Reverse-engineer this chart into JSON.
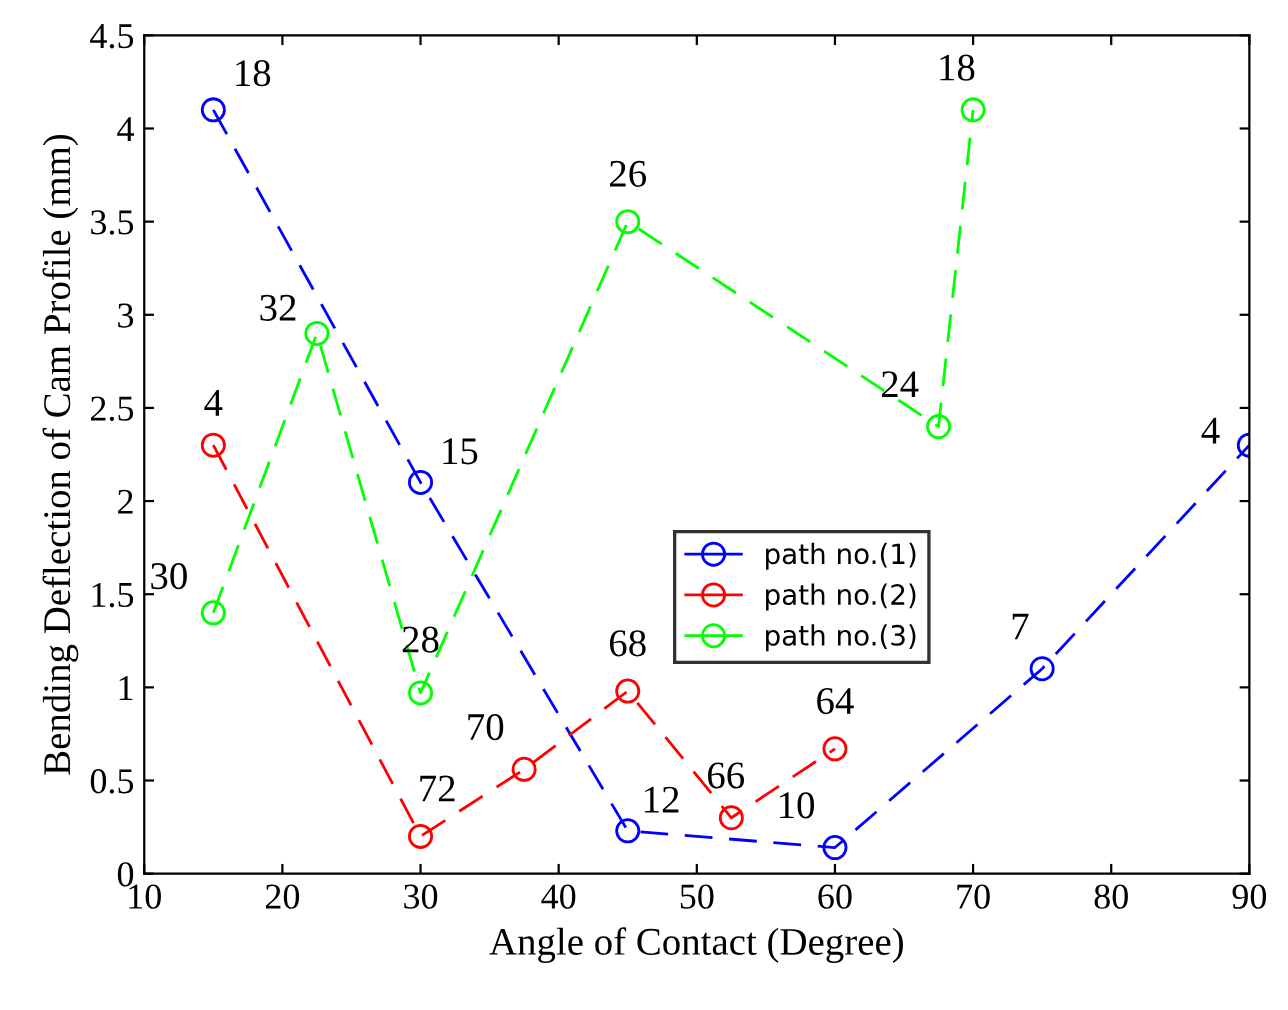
{
  "chart_data": {
    "type": "line",
    "xlabel": "Angle of Contact (Degree)",
    "ylabel": "Bending Deflection of Cam Profile (mm)",
    "xlim": [
      10,
      90
    ],
    "xticks": [
      10,
      20,
      30,
      40,
      50,
      60,
      70,
      80,
      90
    ],
    "ylim": [
      0,
      4.5
    ],
    "yticks": [
      0,
      0.5,
      1,
      1.5,
      2,
      2.5,
      3,
      3.5,
      4,
      4.5
    ],
    "grid": false,
    "legend": "center",
    "marker": "circle",
    "line_style": "dashed",
    "series": [
      {
        "name": "path no.(1)",
        "color": "#0000ff",
        "x": [
          15,
          30,
          45,
          60,
          75,
          90
        ],
        "values": [
          4.1,
          2.1,
          0.23,
          0.14,
          1.1,
          2.3
        ]
      },
      {
        "name": "path no.(2)",
        "color": "#ff0000",
        "x": [
          15,
          30,
          37.5,
          45,
          52.5,
          60
        ],
        "values": [
          2.3,
          0.2,
          0.56,
          0.98,
          0.3,
          0.67
        ]
      },
      {
        "name": "path no.(3)",
        "color": "#00ff00",
        "x": [
          15,
          22.5,
          30,
          45,
          67.5,
          70
        ],
        "values": [
          1.4,
          2.9,
          0.97,
          3.5,
          2.4,
          4.1
        ]
      }
    ],
    "annotations": [
      {
        "text": "18",
        "x": 15,
        "y": 4.1
      },
      {
        "text": "15",
        "x": 30,
        "y": 2.1
      },
      {
        "text": "12",
        "x": 45,
        "y": 0.23
      },
      {
        "text": "10",
        "x": 60,
        "y": 0.14
      },
      {
        "text": "7",
        "x": 75,
        "y": 1.1
      },
      {
        "text": "4",
        "x": 90,
        "y": 2.3
      },
      {
        "text": "4",
        "x": 15,
        "y": 2.3
      },
      {
        "text": "72",
        "x": 30,
        "y": 0.2
      },
      {
        "text": "70",
        "x": 37.5,
        "y": 0.56
      },
      {
        "text": "68",
        "x": 45,
        "y": 0.98
      },
      {
        "text": "66",
        "x": 52.5,
        "y": 0.3
      },
      {
        "text": "64",
        "x": 60,
        "y": 0.67
      },
      {
        "text": "30",
        "x": 15,
        "y": 1.4
      },
      {
        "text": "32",
        "x": 22.5,
        "y": 2.9
      },
      {
        "text": "28",
        "x": 30,
        "y": 0.97
      },
      {
        "text": "26",
        "x": 45,
        "y": 3.5
      },
      {
        "text": "24",
        "x": 67.5,
        "y": 2.4
      },
      {
        "text": "18",
        "x": 70,
        "y": 4.1
      }
    ]
  }
}
